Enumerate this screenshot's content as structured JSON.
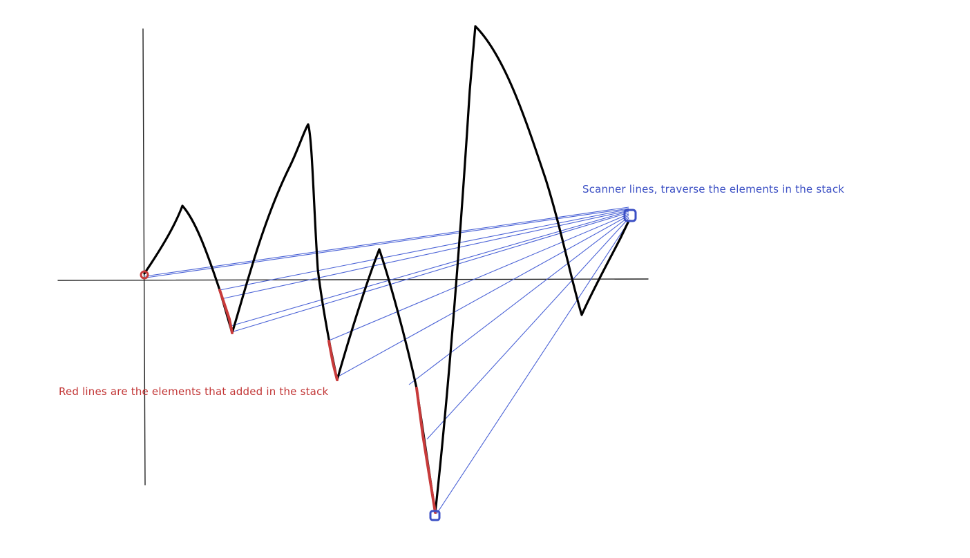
{
  "colors": {
    "curve": "#000000",
    "axes": "#222222",
    "scanner_lines": "#4a62d6",
    "stack_segments": "#c83a3a",
    "scanner_label": "#3b4fc4",
    "stack_label": "#c23535"
  },
  "annotations": {
    "scanner_label": "Scanner lines, traverse the elements in the stack",
    "stack_label": "Red lines are the elements that added in the stack"
  }
}
